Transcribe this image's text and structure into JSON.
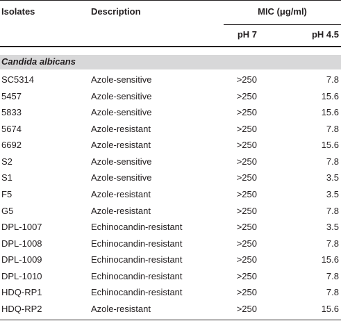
{
  "table": {
    "header": [
      "Isolates",
      "Description",
      "MIC (μg/ml)"
    ],
    "subheader": [
      "pH 7",
      "pH 4.5"
    ],
    "section": "Candida albicans",
    "rows": [
      [
        "SC5314",
        "Azole-sensitive",
        ">250",
        "7.8"
      ],
      [
        "5457",
        "Azole-sensitive",
        ">250",
        "15.6"
      ],
      [
        "5833",
        "Azole-sensitive",
        ">250",
        "15.6"
      ],
      [
        "5674",
        "Azole-resistant",
        ">250",
        "7.8"
      ],
      [
        "6692",
        "Azole-resistant",
        ">250",
        "15.6"
      ],
      [
        "S2",
        "Azole-sensitive",
        ">250",
        "7.8"
      ],
      [
        "S1",
        "Azole-sensitive",
        ">250",
        "3.5"
      ],
      [
        "F5",
        "Azole-resistant",
        ">250",
        "3.5"
      ],
      [
        "G5",
        "Azole-resistant",
        ">250",
        "7.8"
      ],
      [
        "DPL-1007",
        "Echinocandin-resistant",
        ">250",
        "3.5"
      ],
      [
        "DPL-1008",
        "Echinocandin-resistant",
        ">250",
        "7.8"
      ],
      [
        "DPL-1009",
        "Echinocandin-resistant",
        ">250",
        "15.6"
      ],
      [
        "DPL-1010",
        "Echinocandin-resistant",
        ">250",
        "7.8"
      ],
      [
        "HDQ-RP1",
        "Echinocandin-resistant",
        ">250",
        "7.8"
      ],
      [
        "HDQ-RP2",
        "Azole-resistant",
        ">250",
        "15.6"
      ]
    ]
  }
}
